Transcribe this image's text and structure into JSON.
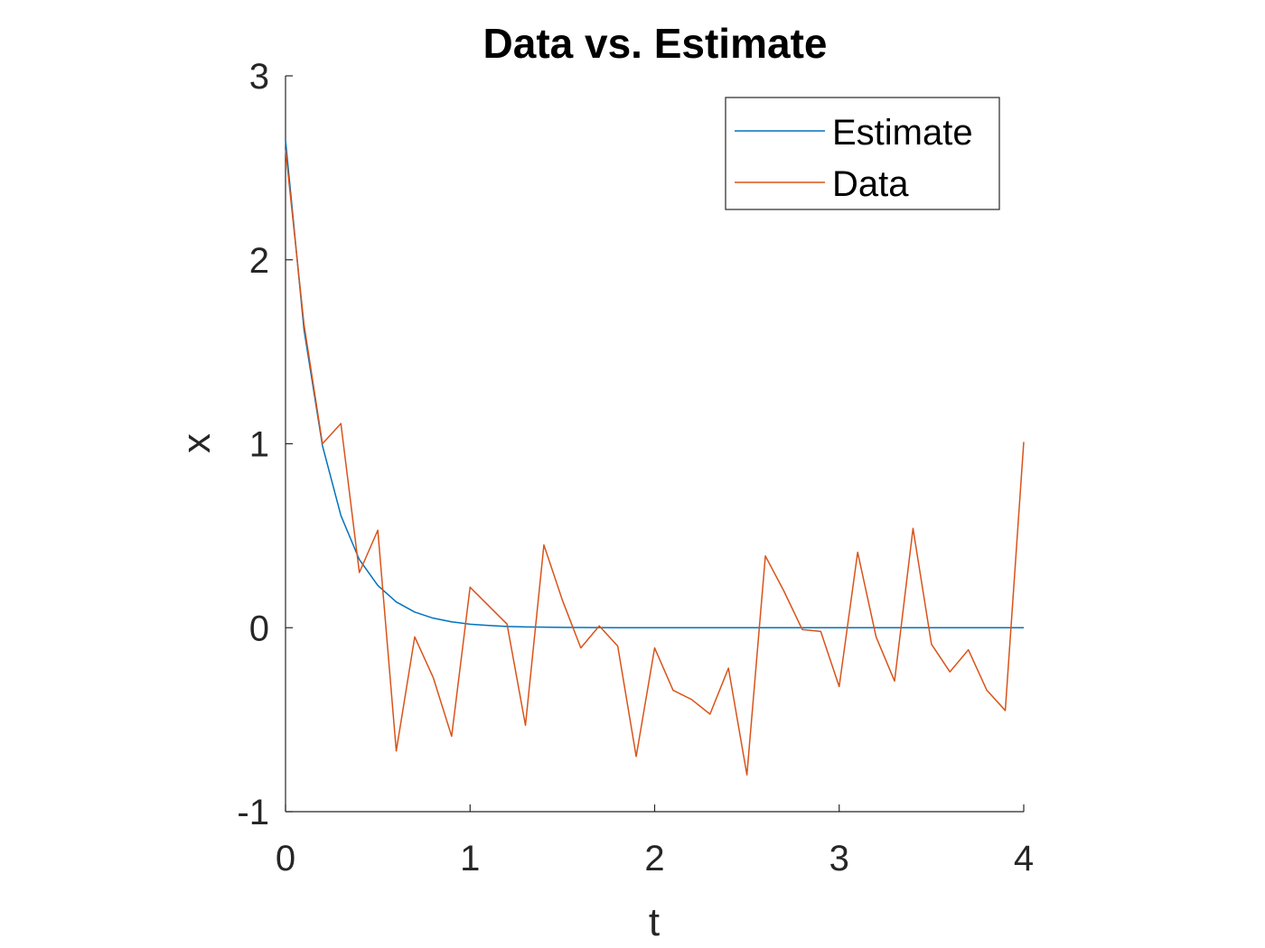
{
  "chart_data": {
    "type": "line",
    "title": "Data vs. Estimate",
    "xlabel": "t",
    "ylabel": "x",
    "xlim": [
      0,
      4
    ],
    "ylim": [
      -1,
      3
    ],
    "xticks": [
      "0",
      "1",
      "2",
      "3",
      "4"
    ],
    "yticks": [
      "-1",
      "0",
      "1",
      "2",
      "3"
    ],
    "grid": false,
    "legend_position": "top-right",
    "x": [
      0,
      0.1,
      0.2,
      0.3,
      0.4,
      0.5,
      0.6,
      0.7,
      0.8,
      0.9,
      1.0,
      1.1,
      1.2,
      1.3,
      1.4,
      1.5,
      1.6,
      1.7,
      1.8,
      1.9,
      2.0,
      2.1,
      2.2,
      2.3,
      2.4,
      2.5,
      2.6,
      2.7,
      2.8,
      2.9,
      3.0,
      3.1,
      3.2,
      3.3,
      3.4,
      3.5,
      3.6,
      3.7,
      3.8,
      3.9,
      4.0
    ],
    "series": [
      {
        "name": "Estimate",
        "color": "#0072BD",
        "values": [
          2.65,
          1.62,
          0.99,
          0.61,
          0.37,
          0.23,
          0.14,
          0.085,
          0.052,
          0.032,
          0.019,
          0.012,
          0.007,
          0.004,
          0.003,
          0.002,
          0.001,
          0.0005,
          0.0003,
          0.0002,
          0.0001,
          0,
          0,
          0,
          0,
          0,
          0,
          0,
          0,
          0,
          0,
          0,
          0,
          0,
          0,
          0,
          0,
          0,
          0,
          0,
          0
        ]
      },
      {
        "name": "Data",
        "color": "#D95319",
        "values": [
          2.6,
          1.65,
          1.0,
          1.11,
          0.3,
          0.53,
          -0.67,
          -0.05,
          -0.27,
          -0.59,
          0.22,
          0.12,
          0.02,
          -0.53,
          0.45,
          0.15,
          -0.11,
          0.01,
          -0.1,
          -0.7,
          -0.11,
          -0.34,
          -0.39,
          -0.47,
          -0.22,
          -0.8,
          0.39,
          0.2,
          -0.01,
          -0.02,
          -0.32,
          0.41,
          -0.05,
          -0.29,
          0.54,
          -0.09,
          -0.24,
          -0.12,
          -0.34,
          -0.45,
          1.01
        ]
      }
    ]
  }
}
